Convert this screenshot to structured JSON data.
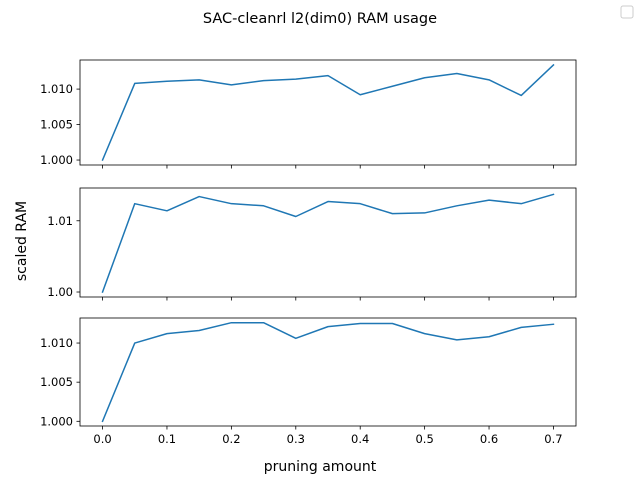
{
  "chart_data": {
    "type": "line",
    "title": "SAC-cleanrl l2(dim0) RAM usage",
    "xlabel": "pruning amount",
    "ylabel": "scaled RAM",
    "series_color": "#1f77b4",
    "legend": "top-right, empty",
    "x": [
      0.0,
      0.05,
      0.1,
      0.15,
      0.2,
      0.25,
      0.3,
      0.35,
      0.4,
      0.45,
      0.5,
      0.55,
      0.6,
      0.65,
      0.7
    ],
    "xlim": [
      -0.035,
      0.735
    ],
    "x_ticks": [
      0.0,
      0.1,
      0.2,
      0.3,
      0.4,
      0.5,
      0.6,
      0.7
    ],
    "x_tick_labels": [
      "0.0",
      "0.1",
      "0.2",
      "0.3",
      "0.4",
      "0.5",
      "0.6",
      "0.7"
    ],
    "subplots": [
      {
        "name": "top",
        "ylim": [
          0.9993,
          1.0141
        ],
        "y_ticks": [
          1.0,
          1.005,
          1.01
        ],
        "y_tick_labels": [
          "1.000",
          "1.005",
          "1.010"
        ],
        "values": [
          1.0,
          1.0108,
          1.0111,
          1.0113,
          1.0106,
          1.0112,
          1.0114,
          1.0119,
          1.0092,
          1.0104,
          1.0116,
          1.0122,
          1.0113,
          1.0091,
          1.0134
        ]
      },
      {
        "name": "middle",
        "ylim": [
          0.9993,
          1.0146
        ],
        "y_ticks": [
          1.0,
          1.01
        ],
        "y_tick_labels": [
          "1.00",
          "1.01"
        ],
        "values": [
          1.0,
          1.0124,
          1.0114,
          1.0134,
          1.0124,
          1.0121,
          1.0106,
          1.0127,
          1.0124,
          1.011,
          1.0111,
          1.0121,
          1.0129,
          1.0124,
          1.0137
        ]
      },
      {
        "name": "bottom",
        "ylim": [
          0.9994,
          1.0132
        ],
        "y_ticks": [
          1.0,
          1.005,
          1.01
        ],
        "y_tick_labels": [
          "1.000",
          "1.005",
          "1.010"
        ],
        "values": [
          1.0,
          1.01,
          1.0112,
          1.0116,
          1.0126,
          1.0126,
          1.0106,
          1.0121,
          1.0125,
          1.0125,
          1.0112,
          1.0104,
          1.0108,
          1.012,
          1.0124
        ]
      }
    ]
  }
}
